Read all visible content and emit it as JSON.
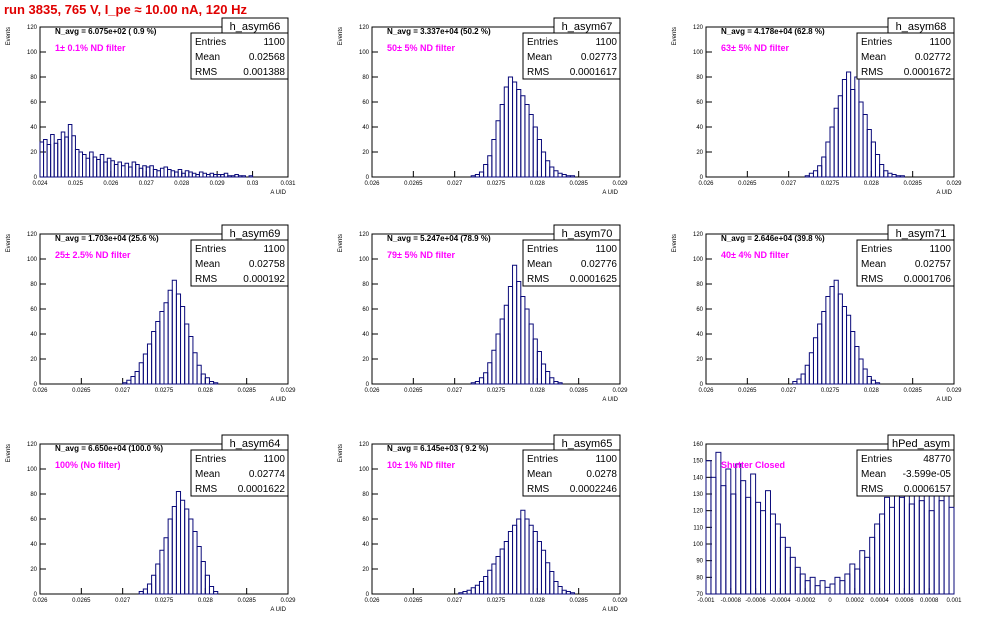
{
  "page_title": "run 3835,   765 V, I_pe ≈ 10.00 nA, 120 Hz",
  "colors": {
    "histogram": "#0a0a7a",
    "annotation": "#ff00ff",
    "page_title": "#e00000",
    "axes": "#000000"
  },
  "stat_labels": {
    "entries": "Entries",
    "mean": "Mean",
    "rms": "RMS"
  },
  "chart_data": [
    {
      "type": "histogram",
      "title": "h_asym66",
      "xlabel": "A_{UID}",
      "ylabel": "Events",
      "xlim": [
        0.024,
        0.031
      ],
      "ylim": [
        0,
        120
      ],
      "xticks": [
        "0.024",
        "0.025",
        "0.026",
        "0.027",
        "0.028",
        "0.029",
        "0.03",
        "0.031"
      ],
      "xtick_values": [
        0.024,
        0.025,
        0.026,
        0.027,
        0.028,
        0.029,
        0.03,
        0.031
      ],
      "yticks": [
        0,
        20,
        40,
        60,
        80,
        100,
        120
      ],
      "annotation_navg": "N_avg = 6.075e+02 ( 0.9 %)",
      "annotation_filter": "1± 0.1% ND filter",
      "stats": {
        "entries": "1100",
        "mean": "0.02568",
        "rms": "0.001388"
      },
      "x": [
        0.024,
        0.0241,
        0.0242,
        0.0243,
        0.0244,
        0.0245,
        0.0246,
        0.0247,
        0.0248,
        0.0249,
        0.025,
        0.0251,
        0.0252,
        0.0253,
        0.0254,
        0.0255,
        0.0256,
        0.0257,
        0.0258,
        0.0259,
        0.026,
        0.0261,
        0.0262,
        0.0263,
        0.0264,
        0.0265,
        0.0266,
        0.0267,
        0.0268,
        0.0269,
        0.027,
        0.0271,
        0.0272,
        0.0273,
        0.0274,
        0.0275,
        0.0276,
        0.0277,
        0.0278,
        0.0279,
        0.028,
        0.0281,
        0.0282,
        0.0283,
        0.0284,
        0.0285,
        0.0286,
        0.0287,
        0.0288,
        0.0289,
        0.029,
        0.0291,
        0.0292,
        0.0293,
        0.0294,
        0.0295,
        0.0296,
        0.0297,
        0.0298,
        0.0299,
        0.03
      ],
      "y": [
        28,
        30,
        26,
        34,
        27,
        30,
        36,
        32,
        42,
        33,
        22,
        20,
        18,
        15,
        20,
        16,
        14,
        18,
        12,
        15,
        13,
        10,
        12,
        9,
        11,
        8,
        12,
        10,
        7,
        9,
        8,
        9,
        6,
        5,
        7,
        8,
        6,
        5,
        4,
        6,
        3,
        5,
        4,
        3,
        2,
        4,
        3,
        2,
        3,
        2,
        2,
        2,
        3,
        1,
        1,
        2,
        1,
        1,
        0,
        1,
        0
      ]
    },
    {
      "type": "histogram",
      "title": "h_asym67",
      "xlabel": "A_{UID}",
      "ylabel": "Events",
      "xlim": [
        0.026,
        0.029
      ],
      "ylim": [
        0,
        120
      ],
      "xticks": [
        "0.026",
        "0.0265",
        "0.027",
        "0.0275",
        "0.028",
        "0.0285",
        "0.029"
      ],
      "xtick_values": [
        0.026,
        0.0265,
        0.027,
        0.0275,
        0.028,
        0.0285,
        0.029
      ],
      "yticks": [
        0,
        20,
        40,
        60,
        80,
        100,
        120
      ],
      "annotation_navg": "N_avg = 3.337e+04 (50.2 %)",
      "annotation_filter": "50± 5% ND filter",
      "stats": {
        "entries": "1100",
        "mean": "0.02773",
        "rms": "0.0001617"
      },
      "x": [
        0.0272,
        0.02725,
        0.0273,
        0.02735,
        0.0274,
        0.02745,
        0.0275,
        0.02755,
        0.0276,
        0.02765,
        0.0277,
        0.02775,
        0.0278,
        0.02785,
        0.0279,
        0.02795,
        0.028,
        0.02805,
        0.0281,
        0.02815,
        0.0282,
        0.02825,
        0.0283,
        0.02835,
        0.0284
      ],
      "y": [
        1,
        2,
        4,
        10,
        17,
        30,
        45,
        58,
        72,
        80,
        76,
        70,
        65,
        58,
        50,
        40,
        30,
        20,
        13,
        8,
        5,
        3,
        2,
        1,
        1
      ]
    },
    {
      "type": "histogram",
      "title": "h_asym68",
      "xlabel": "A_{UID}",
      "ylabel": "Events",
      "xlim": [
        0.026,
        0.029
      ],
      "ylim": [
        0,
        120
      ],
      "xticks": [
        "0.026",
        "0.0265",
        "0.027",
        "0.0275",
        "0.028",
        "0.0285",
        "0.029"
      ],
      "xtick_values": [
        0.026,
        0.0265,
        0.027,
        0.0275,
        0.028,
        0.0285,
        0.029
      ],
      "yticks": [
        0,
        20,
        40,
        60,
        80,
        100,
        120
      ],
      "annotation_navg": "N_avg = 4.178e+04 (62.8 %)",
      "annotation_filter": "63± 5% ND filter",
      "stats": {
        "entries": "1100",
        "mean": "0.02772",
        "rms": "0.0001672"
      },
      "x": [
        0.0272,
        0.02725,
        0.0273,
        0.02735,
        0.0274,
        0.02745,
        0.0275,
        0.02755,
        0.0276,
        0.02765,
        0.0277,
        0.02775,
        0.0278,
        0.02785,
        0.0279,
        0.02795,
        0.028,
        0.02805,
        0.0281,
        0.02815,
        0.0282,
        0.02825,
        0.0283,
        0.02835
      ],
      "y": [
        1,
        3,
        5,
        9,
        16,
        28,
        40,
        55,
        65,
        78,
        84,
        70,
        80,
        60,
        50,
        38,
        28,
        18,
        10,
        5,
        3,
        2,
        1,
        1
      ]
    },
    {
      "type": "histogram",
      "title": "h_asym69",
      "xlabel": "A_{UID}",
      "ylabel": "Events",
      "xlim": [
        0.026,
        0.029
      ],
      "ylim": [
        0,
        120
      ],
      "xticks": [
        "0.026",
        "0.0265",
        "0.027",
        "0.0275",
        "0.028",
        "0.0285",
        "0.029"
      ],
      "xtick_values": [
        0.026,
        0.0265,
        0.027,
        0.0275,
        0.028,
        0.0285,
        0.029
      ],
      "yticks": [
        0,
        20,
        40,
        60,
        80,
        100,
        120
      ],
      "annotation_navg": "N_avg = 1.703e+04 (25.6 %)",
      "annotation_filter": "25± 2.5% ND filter",
      "stats": {
        "entries": "1100",
        "mean": "0.02758",
        "rms": "0.000192"
      },
      "x": [
        0.027,
        0.02705,
        0.0271,
        0.02715,
        0.0272,
        0.02725,
        0.0273,
        0.02735,
        0.0274,
        0.02745,
        0.0275,
        0.02755,
        0.0276,
        0.02765,
        0.0277,
        0.02775,
        0.0278,
        0.02785,
        0.0279,
        0.02795,
        0.028,
        0.02805,
        0.0281
      ],
      "y": [
        1,
        3,
        6,
        10,
        17,
        24,
        32,
        42,
        50,
        58,
        65,
        75,
        83,
        72,
        62,
        48,
        38,
        25,
        15,
        8,
        5,
        2,
        1
      ]
    },
    {
      "type": "histogram",
      "title": "h_asym70",
      "xlabel": "A_{UID}",
      "ylabel": "Events",
      "xlim": [
        0.026,
        0.029
      ],
      "ylim": [
        0,
        120
      ],
      "xticks": [
        "0.026",
        "0.0265",
        "0.027",
        "0.0275",
        "0.028",
        "0.0285",
        "0.029"
      ],
      "xtick_values": [
        0.026,
        0.0265,
        0.027,
        0.0275,
        0.028,
        0.0285,
        0.029
      ],
      "yticks": [
        0,
        20,
        40,
        60,
        80,
        100,
        120
      ],
      "annotation_navg": "N_avg = 5.247e+04 (78.9 %)",
      "annotation_filter": "79± 5% ND filter",
      "stats": {
        "entries": "1100",
        "mean": "0.02776",
        "rms": "0.0001625"
      },
      "x": [
        0.0272,
        0.02725,
        0.0273,
        0.02735,
        0.0274,
        0.02745,
        0.0275,
        0.02755,
        0.0276,
        0.02765,
        0.0277,
        0.02775,
        0.0278,
        0.02785,
        0.0279,
        0.02795,
        0.028,
        0.02805,
        0.0281,
        0.02815,
        0.0282,
        0.02825
      ],
      "y": [
        1,
        2,
        5,
        9,
        17,
        27,
        40,
        52,
        63,
        78,
        95,
        82,
        70,
        60,
        48,
        36,
        26,
        16,
        10,
        5,
        2,
        1
      ]
    },
    {
      "type": "histogram",
      "title": "h_asym71",
      "xlabel": "A_{UID}",
      "ylabel": "Events",
      "xlim": [
        0.026,
        0.029
      ],
      "ylim": [
        0,
        120
      ],
      "xticks": [
        "0.026",
        "0.0265",
        "0.027",
        "0.0275",
        "0.028",
        "0.0285",
        "0.029"
      ],
      "xtick_values": [
        0.026,
        0.0265,
        0.027,
        0.0275,
        0.028,
        0.0285,
        0.029
      ],
      "yticks": [
        0,
        20,
        40,
        60,
        80,
        100,
        120
      ],
      "annotation_navg": "N_avg = 2.646e+04 (39.8 %)",
      "annotation_filter": "40± 4% ND filter",
      "stats": {
        "entries": "1100",
        "mean": "0.02757",
        "rms": "0.0001706"
      },
      "x": [
        0.02705,
        0.0271,
        0.02715,
        0.0272,
        0.02725,
        0.0273,
        0.02735,
        0.0274,
        0.02745,
        0.0275,
        0.02755,
        0.0276,
        0.02765,
        0.0277,
        0.02775,
        0.0278,
        0.02785,
        0.0279,
        0.02795,
        0.028,
        0.02805
      ],
      "y": [
        2,
        4,
        8,
        15,
        25,
        37,
        48,
        58,
        70,
        78,
        83,
        72,
        62,
        55,
        42,
        30,
        20,
        12,
        6,
        3,
        1
      ]
    },
    {
      "type": "histogram",
      "title": "h_asym64",
      "xlabel": "A_{UID}",
      "ylabel": "Events",
      "xlim": [
        0.026,
        0.029
      ],
      "ylim": [
        0,
        120
      ],
      "xticks": [
        "0.026",
        "0.0265",
        "0.027",
        "0.0275",
        "0.028",
        "0.0285",
        "0.029"
      ],
      "xtick_values": [
        0.026,
        0.0265,
        0.027,
        0.0275,
        0.028,
        0.0285,
        0.029
      ],
      "yticks": [
        0,
        20,
        40,
        60,
        80,
        100,
        120
      ],
      "annotation_navg": "N_avg = 6.650e+04 (100.0 %)",
      "annotation_filter": "100% (No filter)",
      "stats": {
        "entries": "1100",
        "mean": "0.02774",
        "rms": "0.0001622"
      },
      "x": [
        0.0272,
        0.02725,
        0.0273,
        0.02735,
        0.0274,
        0.02745,
        0.0275,
        0.02755,
        0.0276,
        0.02765,
        0.0277,
        0.02775,
        0.0278,
        0.02785,
        0.0279,
        0.02795,
        0.028,
        0.02805,
        0.0281
      ],
      "y": [
        2,
        4,
        8,
        15,
        24,
        35,
        45,
        60,
        70,
        82,
        75,
        68,
        60,
        50,
        38,
        26,
        15,
        6,
        2
      ]
    },
    {
      "type": "histogram",
      "title": "h_asym65",
      "xlabel": "A_{UID}",
      "ylabel": "Events",
      "xlim": [
        0.026,
        0.029
      ],
      "ylim": [
        0,
        120
      ],
      "xticks": [
        "0.026",
        "0.0265",
        "0.027",
        "0.0275",
        "0.028",
        "0.0285",
        "0.029"
      ],
      "xtick_values": [
        0.026,
        0.0265,
        0.027,
        0.0275,
        0.028,
        0.0285,
        0.029
      ],
      "yticks": [
        0,
        20,
        40,
        60,
        80,
        100,
        120
      ],
      "annotation_navg": "N_avg = 6.145e+03 ( 9.2 %)",
      "annotation_filter": "10± 1% ND filter",
      "stats": {
        "entries": "1100",
        "mean": "0.0278",
        "rms": "0.0002246"
      },
      "x": [
        0.02705,
        0.0271,
        0.02715,
        0.0272,
        0.02725,
        0.0273,
        0.02735,
        0.0274,
        0.02745,
        0.0275,
        0.02755,
        0.0276,
        0.02765,
        0.0277,
        0.02775,
        0.0278,
        0.02785,
        0.0279,
        0.02795,
        0.028,
        0.02805,
        0.0281,
        0.02815,
        0.0282,
        0.02825,
        0.0283,
        0.02835,
        0.0284
      ],
      "y": [
        1,
        2,
        3,
        5,
        7,
        10,
        14,
        19,
        24,
        30,
        36,
        42,
        50,
        55,
        60,
        67,
        60,
        55,
        50,
        42,
        35,
        25,
        18,
        10,
        6,
        3,
        2,
        1
      ]
    },
    {
      "type": "histogram",
      "title": "hPed_asym",
      "xlabel": "",
      "ylabel": "",
      "xlim": [
        -0.001,
        0.001
      ],
      "ylim": [
        70,
        160
      ],
      "xticks": [
        "-0.001",
        "-0.0008",
        "-0.0006",
        "-0.0004",
        "-0.0002",
        "0",
        "0.0002",
        "0.0004",
        "0.0006",
        "0.0008",
        "0.001"
      ],
      "xtick_values": [
        -0.001,
        -0.0008,
        -0.0006,
        -0.0004,
        -0.0002,
        0,
        0.0002,
        0.0004,
        0.0006,
        0.0008,
        0.001
      ],
      "yticks": [
        70,
        80,
        90,
        100,
        110,
        120,
        130,
        140,
        150,
        160
      ],
      "annotation_navg": "",
      "annotation_filter": "Shutter Closed",
      "stats": {
        "entries": "48770",
        "mean": "-3.599e-05",
        "rms": "0.0006157"
      },
      "x": [
        -0.001,
        -0.00096,
        -0.00092,
        -0.00088,
        -0.00084,
        -0.0008,
        -0.00076,
        -0.00072,
        -0.00068,
        -0.00064,
        -0.0006,
        -0.00056,
        -0.00052,
        -0.00048,
        -0.00044,
        -0.0004,
        -0.00036,
        -0.00032,
        -0.00028,
        -0.00024,
        -0.0002,
        -0.00016,
        -0.00012,
        -8e-05,
        -4e-05,
        0.0,
        4e-05,
        8e-05,
        0.00012,
        0.00016,
        0.0002,
        0.00024,
        0.00028,
        0.00032,
        0.00036,
        0.0004,
        0.00044,
        0.00048,
        0.00052,
        0.00056,
        0.0006,
        0.00064,
        0.00068,
        0.00072,
        0.00076,
        0.0008,
        0.00084,
        0.00088,
        0.00092,
        0.00096
      ],
      "y": [
        150,
        140,
        155,
        135,
        145,
        130,
        148,
        138,
        128,
        142,
        125,
        120,
        132,
        118,
        112,
        104,
        98,
        92,
        86,
        82,
        78,
        80,
        75,
        78,
        74,
        76,
        80,
        78,
        82,
        88,
        85,
        96,
        92,
        104,
        112,
        118,
        128,
        122,
        134,
        128,
        132,
        124,
        136,
        126,
        130,
        120,
        132,
        126,
        130,
        122
      ]
    }
  ]
}
